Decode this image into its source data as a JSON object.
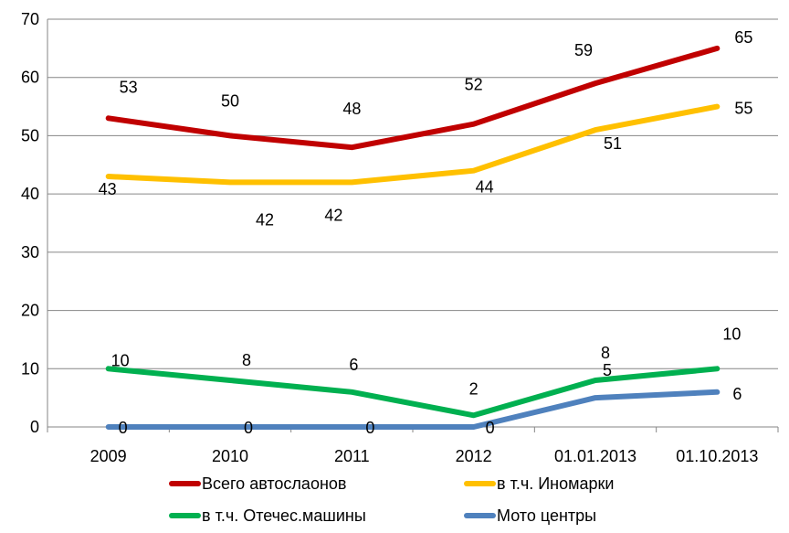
{
  "chart_data": {
    "type": "line",
    "title": "",
    "xlabel": "",
    "ylabel": "",
    "categories": [
      "2009",
      "2010",
      "2011",
      "2012",
      "01.01.2013",
      "01.10.2013"
    ],
    "ylim": [
      0,
      70
    ],
    "yticks": [
      "0",
      "10",
      "20",
      "30",
      "40",
      "50",
      "60",
      "70"
    ],
    "grid": true,
    "legend_position": "bottom",
    "series": [
      {
        "name": "Всего автослаонов",
        "color": "#C00000",
        "values": [
          53,
          50,
          48,
          52,
          59,
          65
        ],
        "labels": [
          "53",
          "50",
          "48",
          "52",
          "59",
          "65"
        ]
      },
      {
        "name": "в т.ч. Иномарки",
        "color": "#FFC000",
        "values": [
          43,
          42,
          42,
          44,
          51,
          55
        ],
        "labels": [
          "43",
          "42",
          "42",
          "44",
          "51",
          "55"
        ]
      },
      {
        "name": "в т.ч. Отечес.машины",
        "color": "#00B050",
        "values": [
          10,
          8,
          6,
          2,
          8,
          10
        ],
        "labels": [
          "10",
          "8",
          "6",
          "2",
          "8",
          "10"
        ]
      },
      {
        "name": "Мото центры",
        "color": "#4F81BD",
        "values": [
          0,
          0,
          0,
          0,
          5,
          6
        ],
        "labels": [
          "0",
          "0",
          "0",
          "0",
          "5",
          "6"
        ]
      }
    ]
  }
}
